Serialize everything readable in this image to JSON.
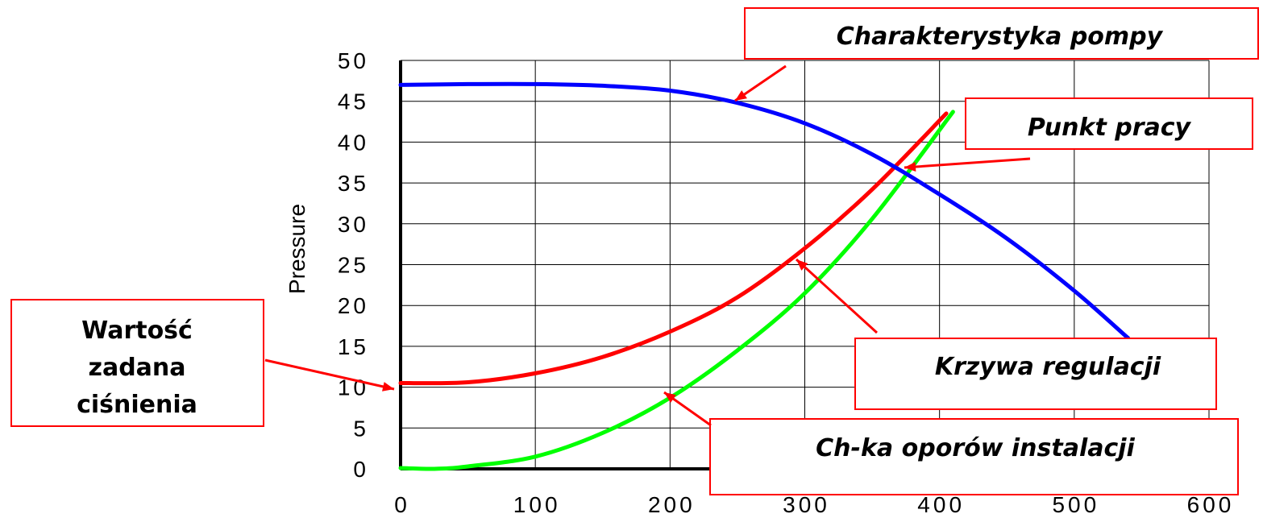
{
  "chart_data": {
    "type": "line",
    "ylabel": "Pressure",
    "xlabel": "",
    "xlim": [
      0,
      600
    ],
    "ylim": [
      0,
      50
    ],
    "xticks": [
      "0",
      "100",
      "200",
      "300",
      "400",
      "500",
      "600"
    ],
    "yticks": [
      "0",
      "5",
      "10",
      "15",
      "20",
      "25",
      "30",
      "35",
      "40",
      "45",
      "50"
    ],
    "grid": true,
    "series": [
      {
        "key": "pump",
        "color": "#0000ff",
        "x": [
          0,
          50,
          100,
          150,
          200,
          250,
          300,
          350,
          400,
          450,
          500,
          540
        ],
        "y": [
          47.0,
          47.1,
          47.1,
          46.9,
          46.3,
          44.8,
          42.3,
          38.5,
          33.6,
          28.2,
          21.8,
          16.0
        ]
      },
      {
        "key": "regulation",
        "color": "#ff0000",
        "x": [
          0,
          50,
          100,
          150,
          200,
          250,
          300,
          350,
          405
        ],
        "y": [
          10.5,
          10.6,
          11.7,
          13.7,
          16.8,
          21.0,
          27.0,
          34.2,
          43.5
        ]
      },
      {
        "key": "system",
        "color": "#00ff00",
        "x": [
          0,
          25,
          50,
          100,
          150,
          200,
          250,
          300,
          350,
          410
        ],
        "y": [
          0.1,
          0.0,
          0.3,
          1.5,
          4.4,
          8.7,
          14.5,
          21.5,
          30.6,
          43.7
        ]
      }
    ],
    "annotations": [
      {
        "key": "pump_char",
        "lines": [
          "Charakterystyka pompy"
        ],
        "italic": true
      },
      {
        "key": "work_point",
        "lines": [
          "Punkt pracy"
        ],
        "italic": true
      },
      {
        "key": "reg_curve",
        "lines": [
          "Krzywa regulacji"
        ],
        "italic": true
      },
      {
        "key": "sys_char",
        "lines": [
          "Ch-ka oporów instalacji"
        ],
        "italic": true
      },
      {
        "key": "setpoint",
        "lines": [
          "Wartość",
          "zadana",
          "ciśnienia"
        ],
        "italic": false
      }
    ],
    "annotation_color": "#ff0000"
  }
}
